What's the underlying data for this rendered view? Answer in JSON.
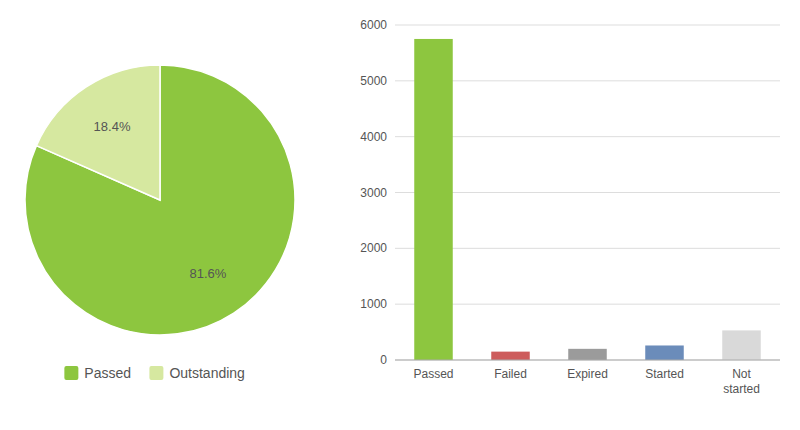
{
  "chart_data": [
    {
      "type": "pie",
      "categories": [
        "Passed",
        "Outstanding"
      ],
      "values": [
        81.6,
        18.4
      ],
      "value_labels": [
        "81.6%",
        "18.4%"
      ],
      "data_labels": true,
      "colors": [
        "#8dc63f",
        "#d6e8a0"
      ],
      "legend": "bottom"
    },
    {
      "type": "bar",
      "categories": [
        "Passed",
        "Failed",
        "Expired",
        "Started",
        "Not\nstarted"
      ],
      "values": [
        5750,
        150,
        200,
        260,
        530
      ],
      "colors": [
        "#8dc63f",
        "#cd5c5c",
        "#9b9b9b",
        "#6b8cba",
        "#d9d9d9"
      ],
      "ylim": [
        0,
        6000
      ],
      "yticks": [
        0,
        1000,
        2000,
        3000,
        4000,
        5000,
        6000
      ],
      "grid": true
    }
  ]
}
